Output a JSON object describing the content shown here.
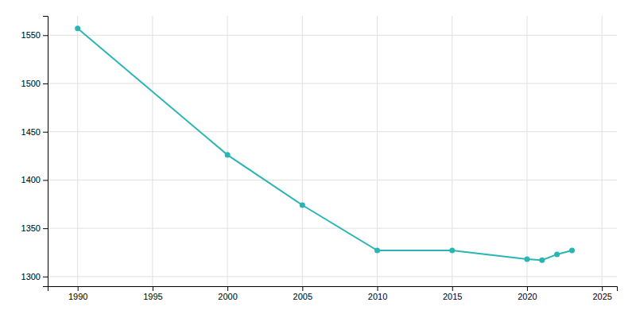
{
  "chart_data": {
    "type": "line",
    "x": [
      1990,
      2000,
      2005,
      2010,
      2015,
      2020,
      2021,
      2022,
      2023
    ],
    "values": [
      1557,
      1426,
      1374,
      1327,
      1327,
      1318,
      1317,
      1323,
      1327
    ],
    "color": "#2ab5b5",
    "marker": "circle",
    "xlim": [
      1988,
      2026
    ],
    "ylim": [
      1290,
      1570
    ],
    "xticks": [
      1990,
      1995,
      2000,
      2005,
      2010,
      2015,
      2020,
      2025
    ],
    "yticks": [
      1300,
      1350,
      1400,
      1450,
      1500,
      1550
    ],
    "grid": true
  }
}
